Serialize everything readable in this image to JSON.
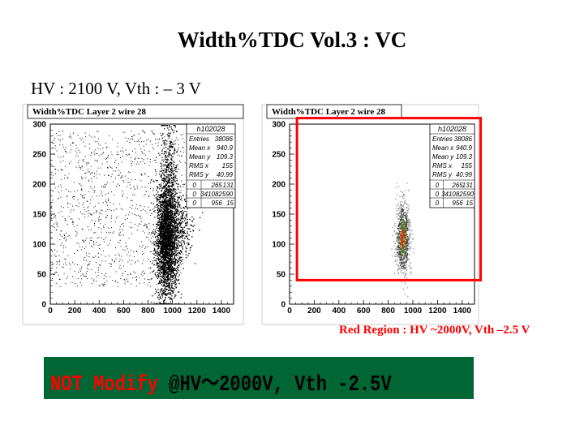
{
  "page": {
    "title": "Width%TDC  Vol.3 : VC",
    "subtitle": "HV : 2100 V, Vth : – 3 V",
    "note": "Red Region : HV ~2000V, Vth –2.5 V",
    "banner_part1": "NOT Modify ",
    "banner_part2": "@HV～2000V, Vth -2.5V",
    "colors": {
      "banner_bg": "#006633",
      "highlight": "#ff0000",
      "part1": "#ff0000",
      "part2": "#000000"
    }
  },
  "chart_data": [
    {
      "type": "scatter",
      "title": "Width%TDC Layer 2 wire 28",
      "xlim": [
        0,
        1500
      ],
      "ylim": [
        0,
        300
      ],
      "xticks": [
        0,
        200,
        400,
        600,
        800,
        1000,
        1200,
        1400
      ],
      "yticks": [
        0,
        50,
        100,
        150,
        200,
        250,
        300
      ],
      "stats": {
        "name": "h102028",
        "rows": [
          [
            "Entries",
            "38086"
          ],
          [
            "Mean x",
            "940.9"
          ],
          [
            "Mean y",
            "109.3"
          ],
          [
            "RMS x",
            "155"
          ],
          [
            "RMS y",
            "40.99"
          ]
        ],
        "cells": [
          [
            "0",
            "265",
            "131"
          ],
          [
            "0",
            "341082590",
            ""
          ],
          [
            "0",
            "956",
            "15"
          ]
        ]
      },
      "clusters": [
        {
          "x": 950,
          "y": 105,
          "sx": 45,
          "sy": 45,
          "n": 2600
        },
        {
          "x": 960,
          "y": 200,
          "sx": 35,
          "sy": 50,
          "n": 500
        },
        {
          "x": 1070,
          "y": 130,
          "sx": 55,
          "sy": 28,
          "n": 250
        }
      ],
      "background": {
        "x": [
          0,
          1100
        ],
        "y": [
          30,
          290
        ],
        "n": 1200
      },
      "highlight": null
    },
    {
      "type": "heatmap",
      "title": "Width%TDC Layer 2 wire 28",
      "xlim": [
        0,
        1500
      ],
      "ylim": [
        0,
        300
      ],
      "xticks": [
        0,
        200,
        400,
        600,
        800,
        1000,
        1200,
        1400
      ],
      "yticks": [
        0,
        50,
        100,
        150,
        200,
        250,
        300
      ],
      "stats": {
        "name": "h102028",
        "rows": [
          [
            "Entries",
            "38086"
          ],
          [
            "Mean x",
            "940.9"
          ],
          [
            "Mean y",
            "109.3"
          ],
          [
            "RMS x",
            "155"
          ],
          [
            "RMS y",
            "40.99"
          ]
        ],
        "cells": [
          [
            "0",
            "265",
            "131"
          ],
          [
            "0",
            "341082590",
            ""
          ],
          [
            "0",
            "956",
            "15"
          ]
        ]
      },
      "clusters": [
        {
          "x": 915,
          "y": 110,
          "sx": 30,
          "sy": 32,
          "n": 900
        }
      ],
      "background": null,
      "highlight": {
        "x": [
          60,
          1550
        ],
        "y": [
          40,
          310
        ],
        "color": "#ff0000"
      }
    }
  ]
}
